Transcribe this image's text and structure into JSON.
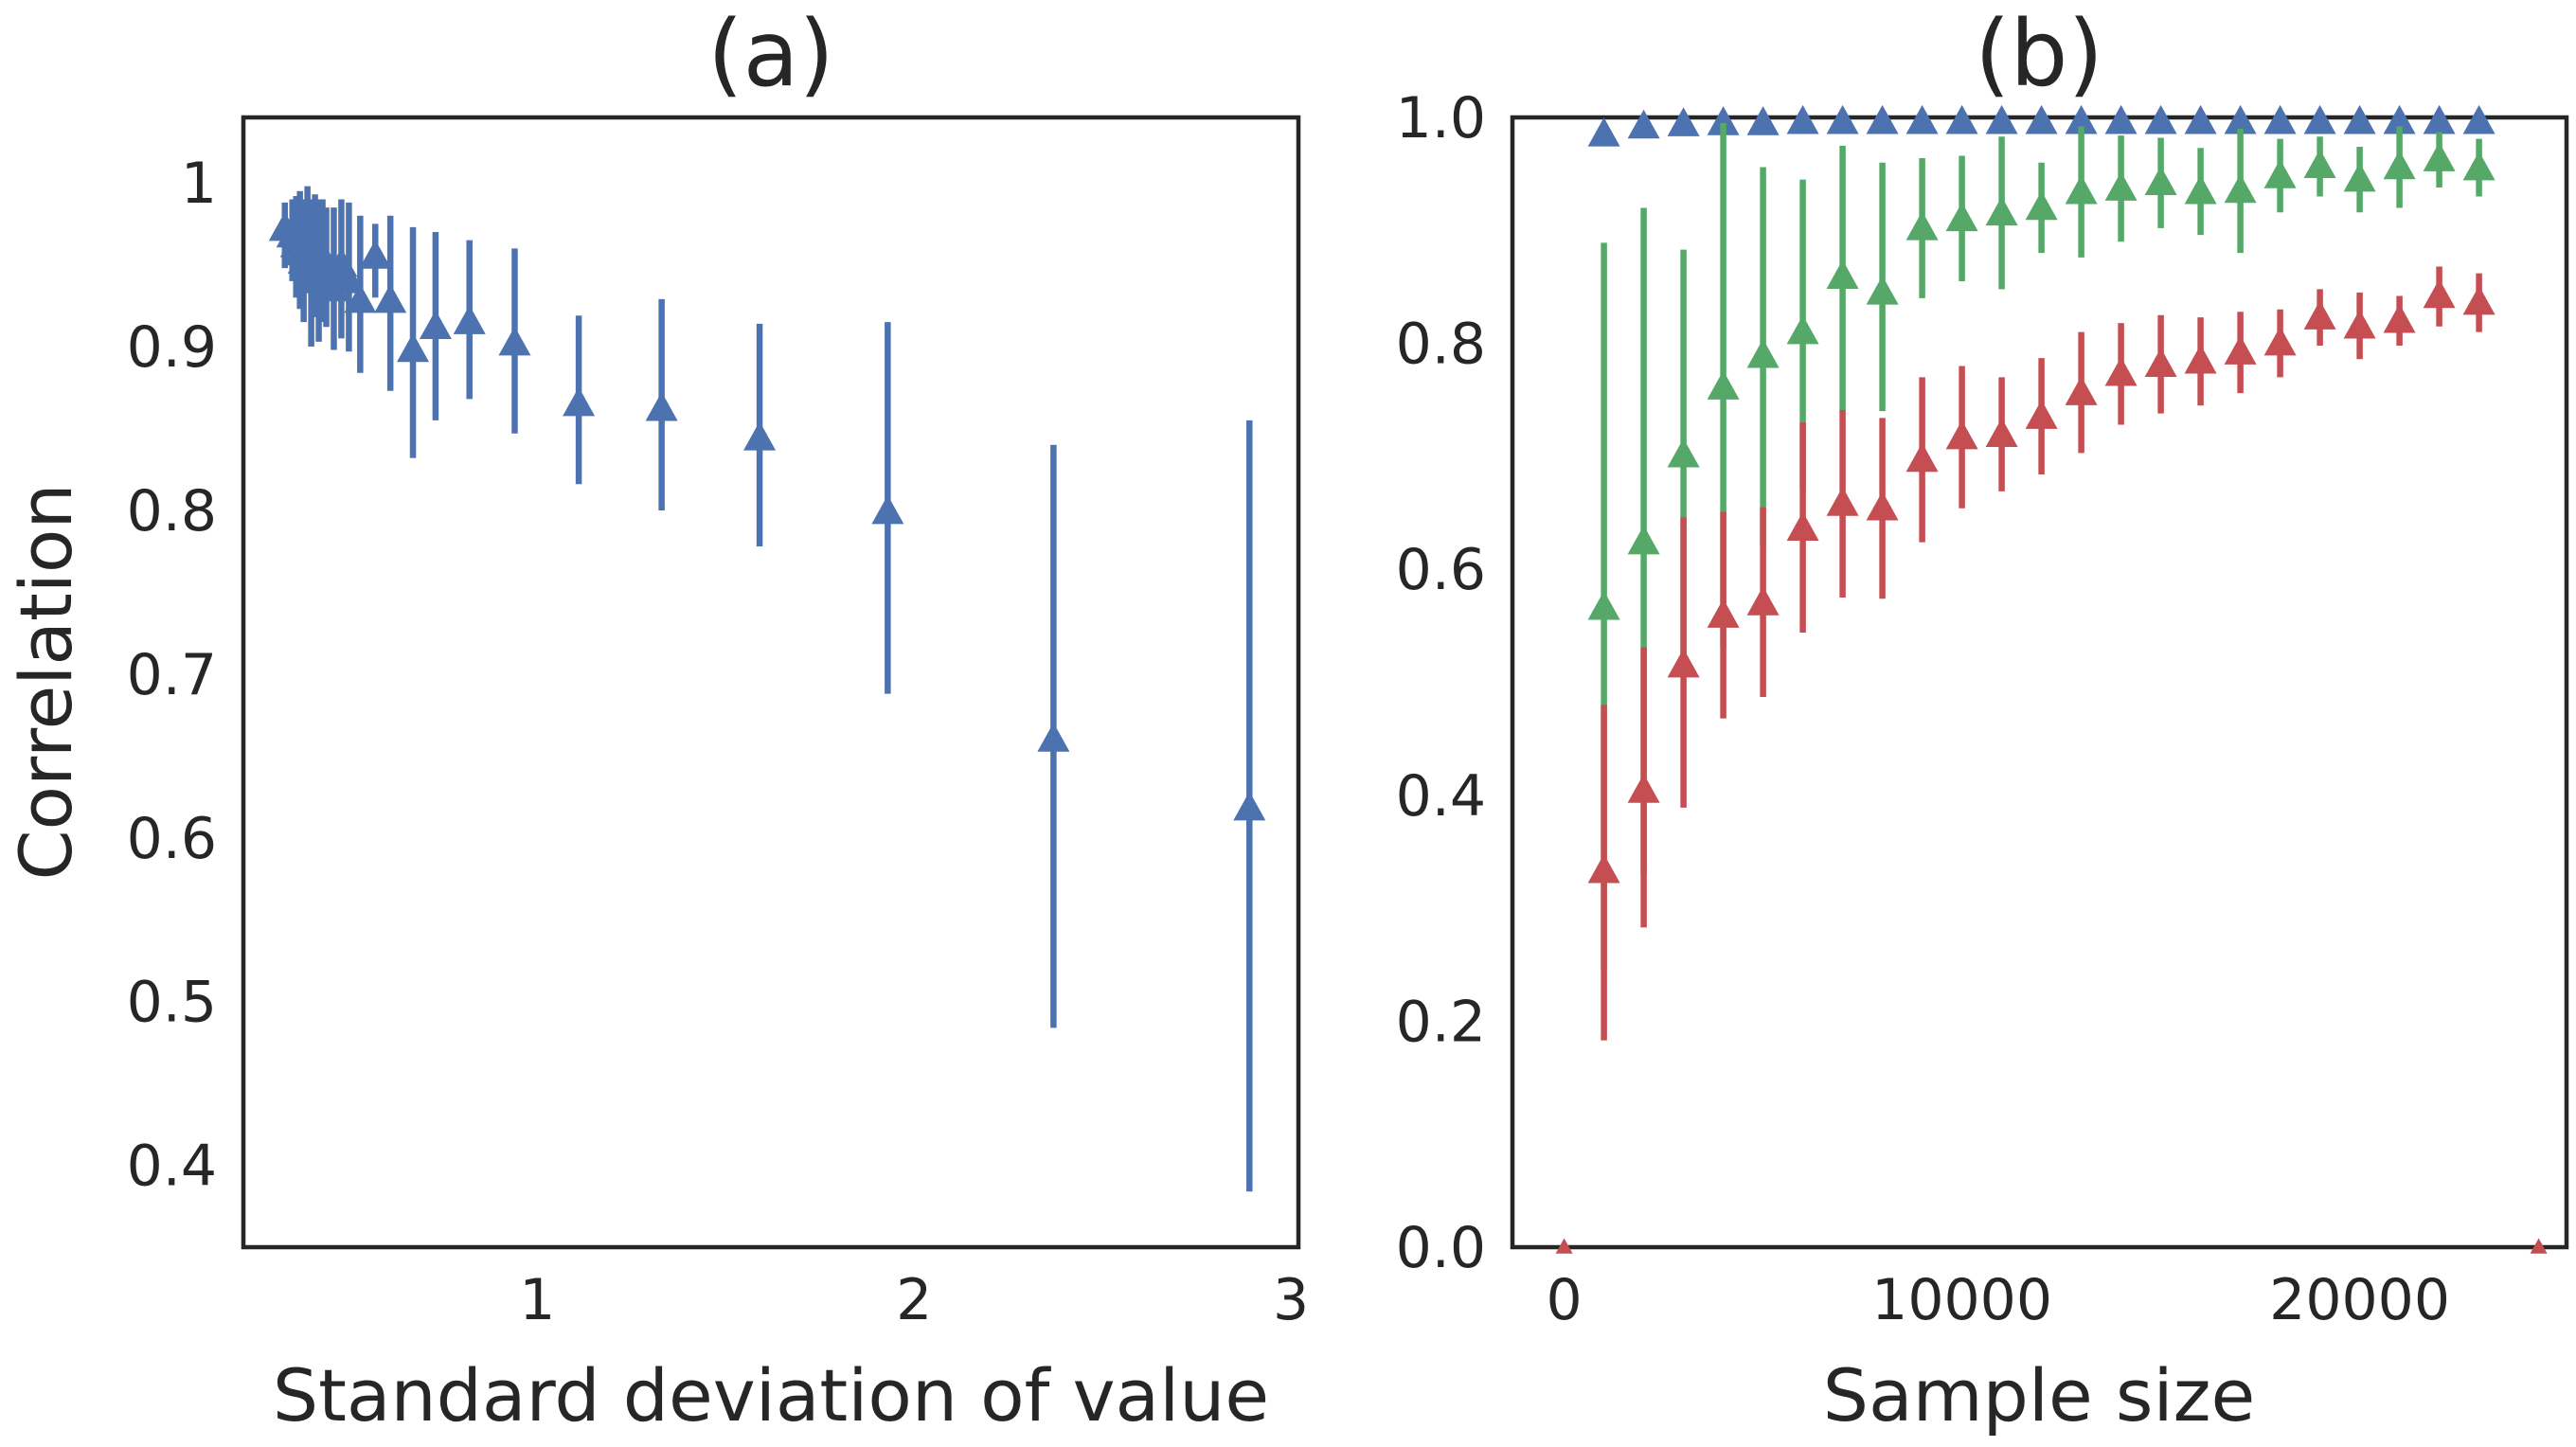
{
  "chart_data": [
    {
      "panel": "(a)",
      "type": "scatter",
      "title": "(a)",
      "xlabel": "Standard deviation of value",
      "ylabel": "Correlation",
      "xlim": [
        0.22,
        3.02
      ],
      "ylim": [
        0.35,
        1.04
      ],
      "xticks": [
        1,
        2,
        3
      ],
      "yticks": [
        0.4,
        0.5,
        0.6,
        0.7,
        0.8,
        0.9,
        1.0
      ],
      "marker": "triangle",
      "grid": false,
      "series": [
        {
          "name": "correlation",
          "color": "#4c72b0",
          "points": [
            {
              "x": 0.33,
              "y": 0.972,
              "lo": 0.948,
              "hi": 0.988
            },
            {
              "x": 0.35,
              "y": 0.968,
              "lo": 0.94,
              "hi": 0.99
            },
            {
              "x": 0.36,
              "y": 0.962,
              "lo": 0.93,
              "hi": 0.992
            },
            {
              "x": 0.37,
              "y": 0.957,
              "lo": 0.923,
              "hi": 0.995
            },
            {
              "x": 0.38,
              "y": 0.952,
              "lo": 0.915,
              "hi": 0.99
            },
            {
              "x": 0.39,
              "y": 0.96,
              "lo": 0.935,
              "hi": 0.998
            },
            {
              "x": 0.4,
              "y": 0.945,
              "lo": 0.9,
              "hi": 0.99
            },
            {
              "x": 0.41,
              "y": 0.95,
              "lo": 0.918,
              "hi": 0.993
            },
            {
              "x": 0.42,
              "y": 0.94,
              "lo": 0.903,
              "hi": 0.99
            },
            {
              "x": 0.43,
              "y": 0.955,
              "lo": 0.915,
              "hi": 0.99
            },
            {
              "x": 0.44,
              "y": 0.948,
              "lo": 0.912,
              "hi": 0.985
            },
            {
              "x": 0.46,
              "y": 0.935,
              "lo": 0.898,
              "hi": 0.985
            },
            {
              "x": 0.48,
              "y": 0.95,
              "lo": 0.905,
              "hi": 0.99
            },
            {
              "x": 0.5,
              "y": 0.94,
              "lo": 0.897,
              "hi": 0.988
            },
            {
              "x": 0.53,
              "y": 0.928,
              "lo": 0.884,
              "hi": 0.98
            },
            {
              "x": 0.57,
              "y": 0.955,
              "lo": 0.93,
              "hi": 0.975
            },
            {
              "x": 0.61,
              "y": 0.928,
              "lo": 0.873,
              "hi": 0.98
            },
            {
              "x": 0.67,
              "y": 0.898,
              "lo": 0.832,
              "hi": 0.973
            },
            {
              "x": 0.73,
              "y": 0.912,
              "lo": 0.855,
              "hi": 0.97
            },
            {
              "x": 0.82,
              "y": 0.915,
              "lo": 0.868,
              "hi": 0.965
            },
            {
              "x": 0.94,
              "y": 0.902,
              "lo": 0.847,
              "hi": 0.96
            },
            {
              "x": 1.11,
              "y": 0.865,
              "lo": 0.816,
              "hi": 0.919
            },
            {
              "x": 1.33,
              "y": 0.862,
              "lo": 0.8,
              "hi": 0.929
            },
            {
              "x": 1.59,
              "y": 0.844,
              "lo": 0.778,
              "hi": 0.914
            },
            {
              "x": 1.93,
              "y": 0.799,
              "lo": 0.688,
              "hi": 0.915
            },
            {
              "x": 2.37,
              "y": 0.66,
              "lo": 0.484,
              "hi": 0.84
            },
            {
              "x": 2.89,
              "y": 0.618,
              "lo": 0.384,
              "hi": 0.855
            }
          ]
        }
      ]
    },
    {
      "panel": "(b)",
      "type": "scatter",
      "title": "(b)",
      "xlabel": "Sample size",
      "ylabel": "",
      "xlim": [
        -1300,
        25200
      ],
      "ylim": [
        0.0,
        1.0
      ],
      "xticks": [
        0,
        10000,
        20000
      ],
      "xtick_labels": [
        "0",
        "10000",
        "20000"
      ],
      "yticks": [
        0.0,
        0.2,
        0.4,
        0.6,
        0.8,
        1.0
      ],
      "ytick_labels": [
        "0.0",
        "0.2",
        "0.4",
        "0.6",
        "0.8",
        "1.0"
      ],
      "marker": "triangle",
      "grid": false,
      "series": [
        {
          "name": "blue",
          "color": "#4c72b0",
          "points": [
            {
              "x": 1000,
              "y": 0.985,
              "lo": 0.978,
              "hi": 0.992
            },
            {
              "x": 2000,
              "y": 0.992,
              "lo": 0.988,
              "hi": 0.996
            },
            {
              "x": 3000,
              "y": 0.994,
              "lo": 0.991,
              "hi": 0.997
            },
            {
              "x": 4000,
              "y": 0.995,
              "lo": 0.992,
              "hi": 0.998
            },
            {
              "x": 5000,
              "y": 0.995,
              "lo": 0.993,
              "hi": 0.998
            },
            {
              "x": 6000,
              "y": 0.996,
              "lo": 0.993,
              "hi": 0.998
            },
            {
              "x": 7000,
              "y": 0.996,
              "lo": 0.994,
              "hi": 0.998
            },
            {
              "x": 8000,
              "y": 0.996,
              "lo": 0.994,
              "hi": 0.998
            },
            {
              "x": 9000,
              "y": 0.996,
              "lo": 0.994,
              "hi": 0.998
            },
            {
              "x": 10000,
              "y": 0.996,
              "lo": 0.994,
              "hi": 0.998
            },
            {
              "x": 11000,
              "y": 0.996,
              "lo": 0.994,
              "hi": 0.998
            },
            {
              "x": 12000,
              "y": 0.996,
              "lo": 0.994,
              "hi": 0.998
            },
            {
              "x": 13000,
              "y": 0.996,
              "lo": 0.994,
              "hi": 0.998
            },
            {
              "x": 14000,
              "y": 0.996,
              "lo": 0.994,
              "hi": 0.998
            },
            {
              "x": 15000,
              "y": 0.996,
              "lo": 0.994,
              "hi": 0.998
            },
            {
              "x": 16000,
              "y": 0.996,
              "lo": 0.994,
              "hi": 0.998
            },
            {
              "x": 17000,
              "y": 0.996,
              "lo": 0.994,
              "hi": 0.998
            },
            {
              "x": 18000,
              "y": 0.996,
              "lo": 0.994,
              "hi": 0.998
            },
            {
              "x": 19000,
              "y": 0.996,
              "lo": 0.994,
              "hi": 0.998
            },
            {
              "x": 20000,
              "y": 0.996,
              "lo": 0.994,
              "hi": 0.998
            },
            {
              "x": 21000,
              "y": 0.996,
              "lo": 0.994,
              "hi": 0.998
            },
            {
              "x": 22000,
              "y": 0.996,
              "lo": 0.994,
              "hi": 0.998
            },
            {
              "x": 23000,
              "y": 0.996,
              "lo": 0.994,
              "hi": 0.998
            }
          ]
        },
        {
          "name": "green",
          "color": "#55a868",
          "points": [
            {
              "x": 1000,
              "y": 0.566,
              "lo": 0.245,
              "hi": 0.889
            },
            {
              "x": 2000,
              "y": 0.624,
              "lo": 0.33,
              "hi": 0.92
            },
            {
              "x": 3000,
              "y": 0.701,
              "lo": 0.52,
              "hi": 0.883
            },
            {
              "x": 4000,
              "y": 0.761,
              "lo": 0.53,
              "hi": 0.995
            },
            {
              "x": 5000,
              "y": 0.789,
              "lo": 0.62,
              "hi": 0.956
            },
            {
              "x": 6000,
              "y": 0.81,
              "lo": 0.67,
              "hi": 0.945
            },
            {
              "x": 7000,
              "y": 0.859,
              "lo": 0.74,
              "hi": 0.975
            },
            {
              "x": 8000,
              "y": 0.845,
              "lo": 0.74,
              "hi": 0.96
            },
            {
              "x": 9000,
              "y": 0.902,
              "lo": 0.84,
              "hi": 0.964
            },
            {
              "x": 10000,
              "y": 0.91,
              "lo": 0.855,
              "hi": 0.966
            },
            {
              "x": 11000,
              "y": 0.915,
              "lo": 0.848,
              "hi": 0.983
            },
            {
              "x": 12000,
              "y": 0.92,
              "lo": 0.88,
              "hi": 0.96
            },
            {
              "x": 13000,
              "y": 0.934,
              "lo": 0.876,
              "hi": 0.992
            },
            {
              "x": 14000,
              "y": 0.937,
              "lo": 0.89,
              "hi": 0.984
            },
            {
              "x": 15000,
              "y": 0.942,
              "lo": 0.902,
              "hi": 0.982
            },
            {
              "x": 16000,
              "y": 0.934,
              "lo": 0.896,
              "hi": 0.973
            },
            {
              "x": 17000,
              "y": 0.935,
              "lo": 0.88,
              "hi": 0.99
            },
            {
              "x": 18000,
              "y": 0.948,
              "lo": 0.916,
              "hi": 0.981
            },
            {
              "x": 19000,
              "y": 0.957,
              "lo": 0.93,
              "hi": 0.983
            },
            {
              "x": 20000,
              "y": 0.945,
              "lo": 0.916,
              "hi": 0.974
            },
            {
              "x": 21000,
              "y": 0.956,
              "lo": 0.92,
              "hi": 0.992
            },
            {
              "x": 22000,
              "y": 0.963,
              "lo": 0.938,
              "hi": 0.987
            },
            {
              "x": 23000,
              "y": 0.955,
              "lo": 0.93,
              "hi": 0.981
            }
          ]
        },
        {
          "name": "red",
          "color": "#c44e52",
          "points": [
            {
              "x": 1000,
              "y": 0.333,
              "lo": 0.183,
              "hi": 0.48
            },
            {
              "x": 2000,
              "y": 0.404,
              "lo": 0.283,
              "hi": 0.531
            },
            {
              "x": 3000,
              "y": 0.515,
              "lo": 0.389,
              "hi": 0.646
            },
            {
              "x": 4000,
              "y": 0.559,
              "lo": 0.468,
              "hi": 0.651
            },
            {
              "x": 5000,
              "y": 0.57,
              "lo": 0.487,
              "hi": 0.655
            },
            {
              "x": 6000,
              "y": 0.636,
              "lo": 0.544,
              "hi": 0.73
            },
            {
              "x": 7000,
              "y": 0.658,
              "lo": 0.575,
              "hi": 0.741
            },
            {
              "x": 8000,
              "y": 0.654,
              "lo": 0.574,
              "hi": 0.734
            },
            {
              "x": 9000,
              "y": 0.697,
              "lo": 0.624,
              "hi": 0.77
            },
            {
              "x": 10000,
              "y": 0.717,
              "lo": 0.654,
              "hi": 0.78
            },
            {
              "x": 11000,
              "y": 0.719,
              "lo": 0.669,
              "hi": 0.77
            },
            {
              "x": 12000,
              "y": 0.735,
              "lo": 0.684,
              "hi": 0.787
            },
            {
              "x": 13000,
              "y": 0.756,
              "lo": 0.703,
              "hi": 0.81
            },
            {
              "x": 14000,
              "y": 0.773,
              "lo": 0.728,
              "hi": 0.818
            },
            {
              "x": 15000,
              "y": 0.781,
              "lo": 0.738,
              "hi": 0.825
            },
            {
              "x": 16000,
              "y": 0.784,
              "lo": 0.745,
              "hi": 0.823
            },
            {
              "x": 17000,
              "y": 0.792,
              "lo": 0.756,
              "hi": 0.828
            },
            {
              "x": 18000,
              "y": 0.8,
              "lo": 0.77,
              "hi": 0.83
            },
            {
              "x": 19000,
              "y": 0.823,
              "lo": 0.798,
              "hi": 0.848
            },
            {
              "x": 20000,
              "y": 0.815,
              "lo": 0.786,
              "hi": 0.845
            },
            {
              "x": 21000,
              "y": 0.82,
              "lo": 0.798,
              "hi": 0.842
            },
            {
              "x": 22000,
              "y": 0.842,
              "lo": 0.815,
              "hi": 0.868
            },
            {
              "x": 23000,
              "y": 0.836,
              "lo": 0.81,
              "hi": 0.862
            }
          ]
        },
        {
          "name": "red-edge-markers",
          "color": "#c44e52",
          "small": true,
          "points": [
            {
              "x": 0,
              "y": 0.0
            },
            {
              "x": 24500,
              "y": 0.0
            }
          ]
        }
      ]
    }
  ]
}
